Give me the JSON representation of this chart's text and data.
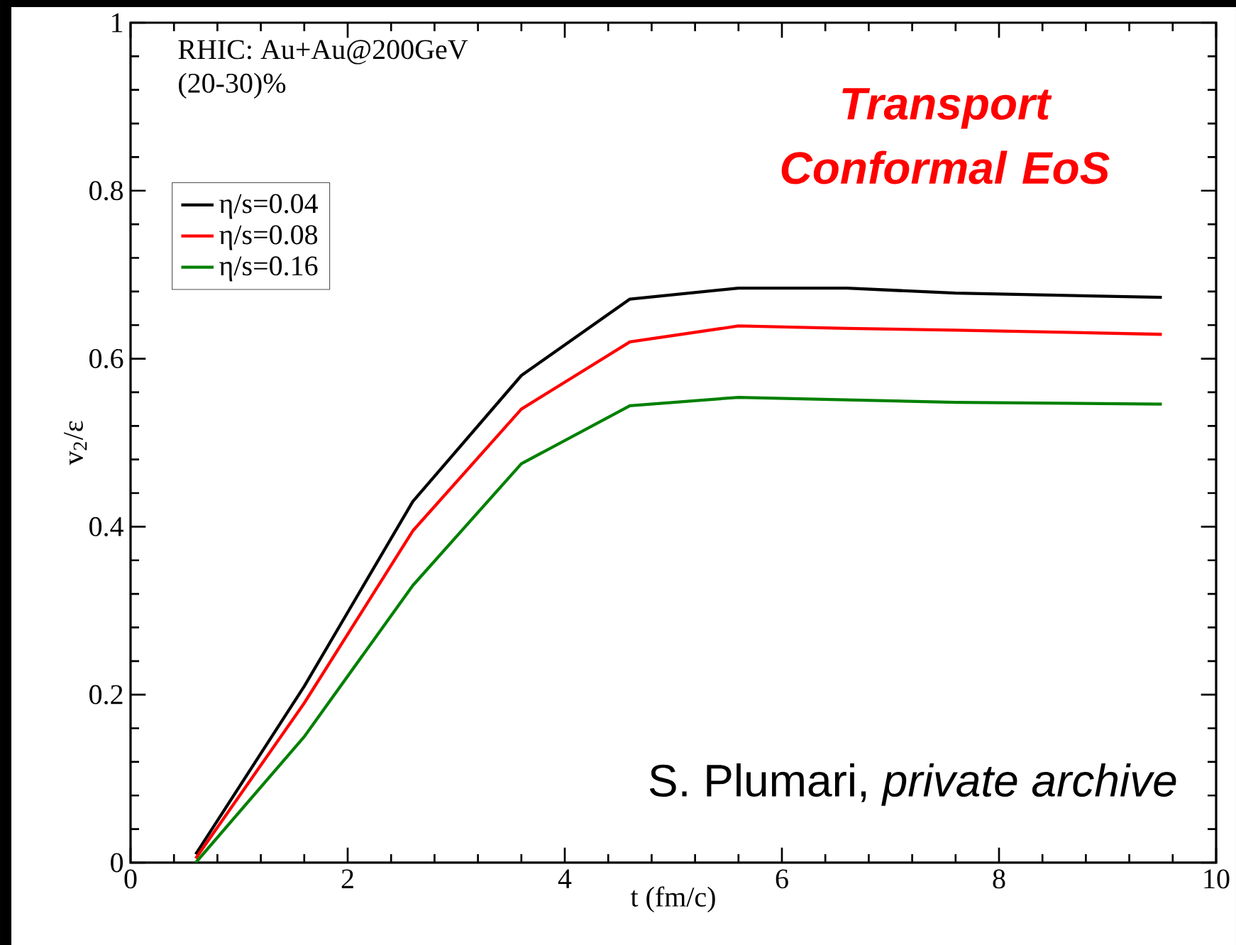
{
  "chart_data": {
    "type": "line",
    "xlabel": "t (fm/c)",
    "ylabel": "v$_{2}$/ε",
    "annotations": [
      "RHIC: Au+Au@200GeV",
      "(20-30)%",
      "Transport Conformal EoS",
      "S. Plumari, *private archive*"
    ],
    "x": [
      0.6,
      1.6,
      2.6,
      3.6,
      4.6,
      5.6,
      6.6,
      7.6,
      9.5
    ],
    "series": [
      {
        "name": "η/s=0.04",
        "color": "#000000",
        "values": [
          0.01,
          0.21,
          0.43,
          0.58,
          0.671,
          0.684,
          0.684,
          0.678,
          0.673
        ]
      },
      {
        "name": "η/s=0.08",
        "color": "#ff0000",
        "values": [
          0.005,
          0.19,
          0.395,
          0.54,
          0.62,
          0.639,
          0.636,
          0.634,
          0.629
        ]
      },
      {
        "name": "η/s=0.16",
        "color": "#008000",
        "values": [
          0.0,
          0.15,
          0.33,
          0.475,
          0.544,
          0.554,
          0.551,
          0.548,
          0.546
        ]
      }
    ],
    "xlim": [
      0,
      10
    ],
    "ylim": [
      0,
      1
    ],
    "xticks": [
      0,
      2,
      4,
      6,
      8,
      10
    ],
    "yticks": [
      0,
      0.2,
      0.4,
      0.6,
      0.8,
      1
    ],
    "legend": "top left",
    "grid": false,
    "marker": "none",
    "line_style": "solid"
  }
}
